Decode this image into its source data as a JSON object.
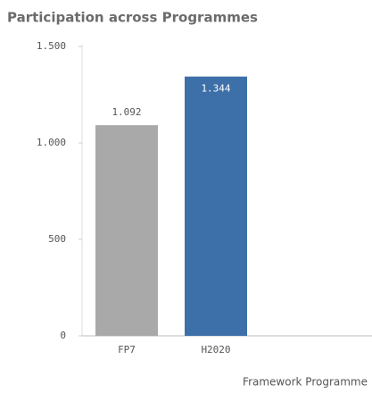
{
  "chart_data": {
    "type": "bar",
    "title": "Participation across Programmes",
    "categories": [
      "FP7",
      "H2020"
    ],
    "values": [
      1092,
      1344
    ],
    "value_labels": [
      "1.092",
      "1.344"
    ],
    "colors": [
      "#a9a9a9",
      "#3d6fa8"
    ],
    "ylim": [
      0,
      1500
    ],
    "yticks": [
      0,
      500,
      {
        "value": 1000,
        "label": "1.000"
      },
      {
        "value": 1500,
        "label": "1.500"
      }
    ],
    "xlabel": "Framework Programme",
    "grid": false
  }
}
